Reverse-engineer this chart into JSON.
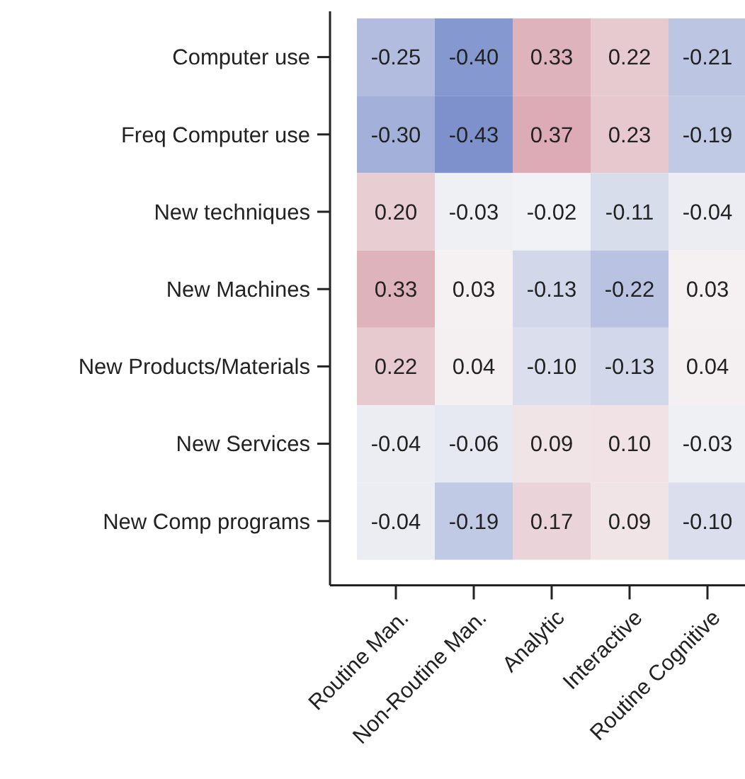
{
  "chart_data": {
    "type": "heatmap",
    "categories": [
      "Routine Man.",
      "Non-Routine Man.",
      "Analytic",
      "Interactive",
      "Routine Cognitive"
    ],
    "y_categories": [
      "Computer use",
      "Freq Computer use",
      "New techniques",
      "New Machines",
      "New Products/Materials",
      "New Services",
      "New Comp programs"
    ],
    "cells": [
      [
        -0.25,
        -0.4,
        0.33,
        0.22,
        -0.21
      ],
      [
        -0.3,
        -0.43,
        0.37,
        0.23,
        -0.19
      ],
      [
        0.2,
        -0.03,
        -0.02,
        -0.11,
        -0.04
      ],
      [
        0.33,
        0.03,
        -0.13,
        -0.22,
        0.03
      ],
      [
        0.22,
        0.04,
        -0.1,
        -0.13,
        0.04
      ],
      [
        -0.04,
        -0.06,
        0.09,
        0.1,
        -0.03
      ],
      [
        -0.04,
        -0.19,
        0.17,
        0.09,
        -0.1
      ]
    ],
    "cell_labels": [
      [
        "-0.25",
        "-0.40",
        "0.33",
        "0.22",
        "-0.21"
      ],
      [
        "-0.30",
        "-0.43",
        "0.37",
        "0.23",
        "-0.19"
      ],
      [
        "0.20",
        "-0.03",
        "-0.02",
        "-0.11",
        "-0.04"
      ],
      [
        "0.33",
        "0.03",
        "-0.13",
        "-0.22",
        "0.03"
      ],
      [
        "0.22",
        "0.04",
        "-0.10",
        "-0.13",
        "0.04"
      ],
      [
        "-0.04",
        "-0.06",
        "0.09",
        "0.10",
        "-0.03"
      ],
      [
        "-0.04",
        "-0.19",
        "0.17",
        "0.09",
        "-0.10"
      ]
    ]
  }
}
